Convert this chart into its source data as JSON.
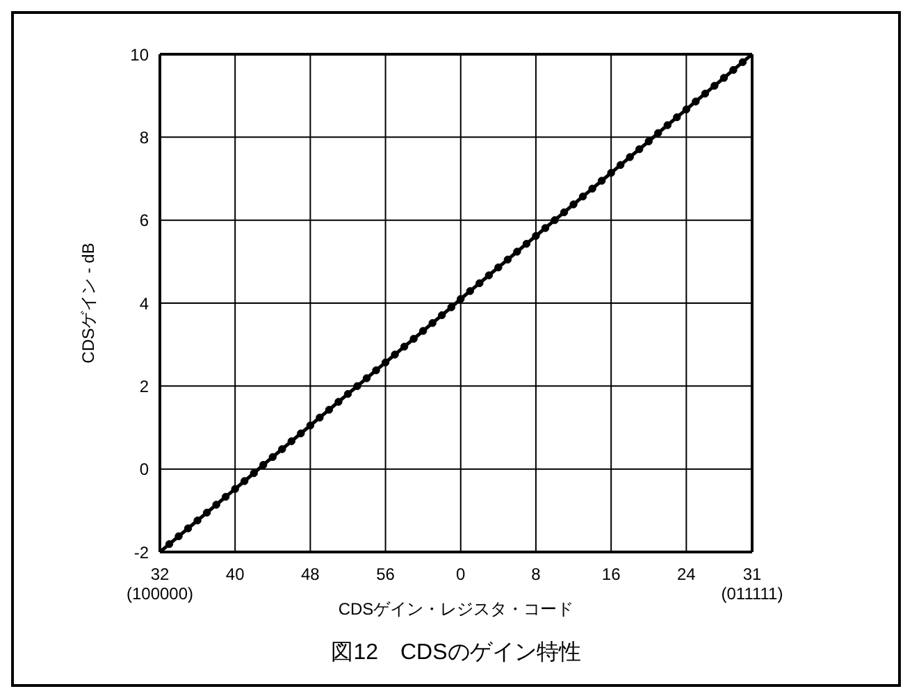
{
  "chart_data": {
    "type": "line",
    "title": "図12　CDSのゲイン特性",
    "xlabel": "CDSゲイン・レジスタ・コード",
    "ylabel": "CDSゲイン - dB",
    "categories": [
      "32\n(100000)",
      null,
      null,
      null,
      null,
      null,
      null,
      null,
      "40",
      null,
      null,
      null,
      null,
      null,
      null,
      null,
      "48",
      null,
      null,
      null,
      null,
      null,
      null,
      null,
      "56",
      null,
      null,
      null,
      null,
      null,
      null,
      null,
      "0",
      null,
      null,
      null,
      null,
      null,
      null,
      null,
      "8",
      null,
      null,
      null,
      null,
      null,
      null,
      null,
      "16",
      null,
      null,
      null,
      null,
      null,
      null,
      null,
      "24",
      null,
      null,
      null,
      null,
      null,
      null,
      "31\n(011111)"
    ],
    "series": [
      {
        "color": "#000000",
        "values": [
          -2,
          -1.81,
          -1.62,
          -1.43,
          -1.24,
          -1.05,
          -0.86,
          -0.67,
          -0.48,
          -0.29,
          -0.1,
          0.1,
          0.29,
          0.48,
          0.67,
          0.86,
          1.05,
          1.24,
          1.43,
          1.62,
          1.81,
          2.0,
          2.19,
          2.38,
          2.57,
          2.76,
          2.95,
          3.14,
          3.33,
          3.52,
          3.71,
          3.9,
          4.1,
          4.29,
          4.48,
          4.67,
          4.86,
          5.05,
          5.24,
          5.43,
          5.62,
          5.81,
          6.0,
          6.19,
          6.38,
          6.57,
          6.76,
          6.95,
          7.14,
          7.33,
          7.52,
          7.71,
          7.9,
          8.1,
          8.29,
          8.48,
          8.67,
          8.86,
          9.05,
          9.24,
          9.43,
          9.62,
          9.81,
          10
        ]
      }
    ],
    "ylim": [
      -2,
      10
    ],
    "yticks": [
      -2,
      0,
      2,
      4,
      6,
      8,
      10
    ],
    "grid": true,
    "marker": "circle",
    "line_style": "solid"
  }
}
